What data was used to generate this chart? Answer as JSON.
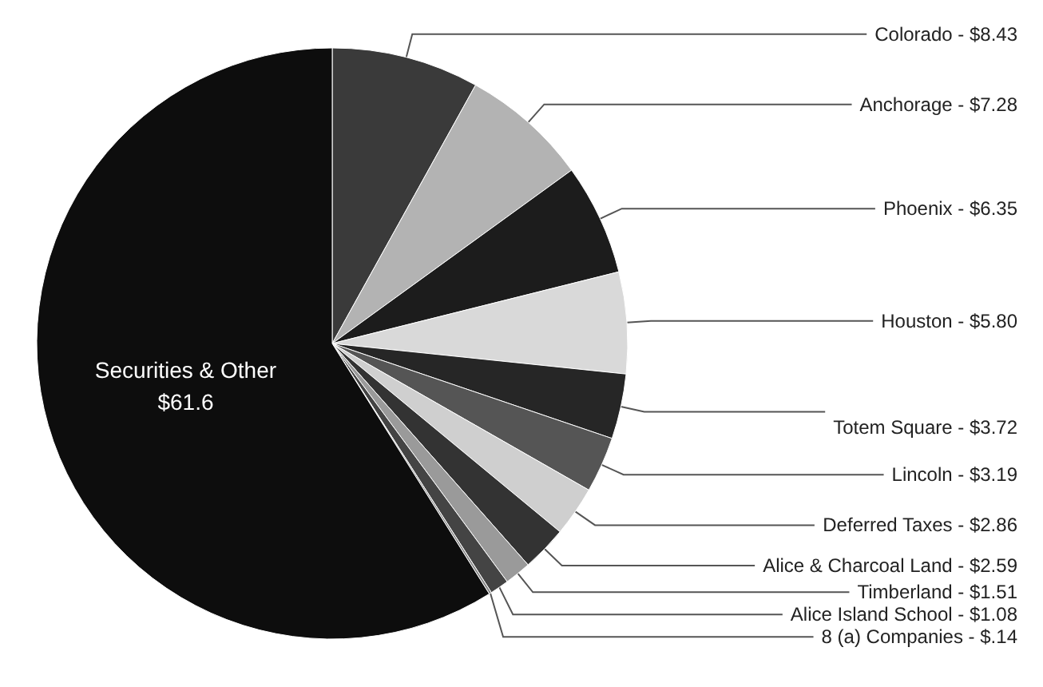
{
  "chart_data": {
    "type": "pie",
    "categories": [
      "Colorado",
      "Anchorage",
      "Phoenix",
      "Houston",
      "Totem Square",
      "Lincoln",
      "Deferred Taxes",
      "Alice & Charcoal Land",
      "Timberland",
      "Alice Island School",
      "8 (a) Companies",
      "Securities & Other"
    ],
    "values": [
      8.43,
      7.28,
      6.35,
      5.8,
      3.72,
      3.19,
      2.86,
      2.59,
      1.51,
      1.08,
      0.14,
      61.6
    ],
    "value_labels": [
      "$8.43",
      "$7.28",
      "$6.35",
      "$5.80",
      "$3.72",
      "$3.19",
      "$2.86",
      "$2.59",
      "$1.51",
      "$1.08",
      "$.14",
      "$61.6"
    ],
    "colors": [
      "#3a3a3a",
      "#b3b3b3",
      "#1c1c1c",
      "#d9d9d9",
      "#262626",
      "#555555",
      "#cfcfcf",
      "#333333",
      "#9a9a9a",
      "#444444",
      "#888888",
      "#0d0d0d"
    ],
    "legend": false
  }
}
